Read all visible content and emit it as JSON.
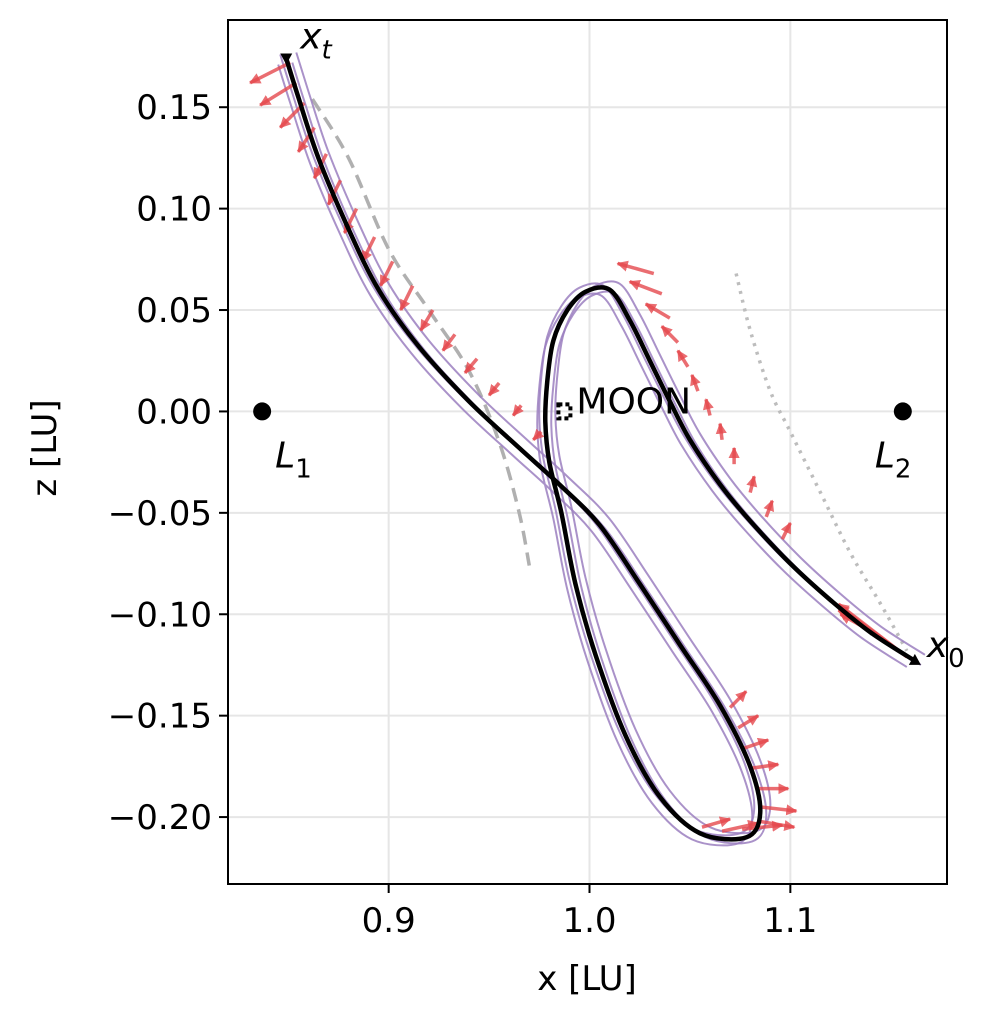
{
  "chart_data": {
    "type": "line",
    "title": "",
    "xlabel": "x [LU]",
    "ylabel": "z [LU]",
    "xlim": [
      0.82,
      1.178
    ],
    "ylim": [
      -0.233,
      0.193
    ],
    "grid": true,
    "xticks": [
      0.9,
      1.0,
      1.1
    ],
    "xtick_labels": [
      "0.9",
      "1.0",
      "1.1"
    ],
    "yticks": [
      0.15,
      0.1,
      0.05,
      0.0,
      -0.05,
      -0.1,
      -0.15,
      -0.2
    ],
    "ytick_labels": [
      "0.15",
      "0.10",
      "0.05",
      "0.00",
      "−0.05",
      "−0.10",
      "−0.15",
      "−0.20"
    ],
    "colors": {
      "trajectory": "#000000",
      "thrust": "#e5484d",
      "ensemble": "#9b7fbf",
      "initial_orbit": "#b0b0b0",
      "target_orbit": "#bdbdbd",
      "grid": "#e6e6e6"
    },
    "points": [
      {
        "name": "L1",
        "label": "L",
        "sub": "1",
        "x": 0.837,
        "z": 0.0
      },
      {
        "name": "L2",
        "label": "L",
        "sub": "2",
        "x": 1.156,
        "z": 0.0
      }
    ],
    "moon": {
      "label": "MOON",
      "x": 0.9875,
      "z": 0.0
    },
    "start": {
      "label": "x",
      "sub": "0",
      "x": 1.162,
      "z": -0.123
    },
    "target": {
      "label": "x",
      "sub": "t",
      "x": 0.849,
      "z": 0.174
    },
    "series": [
      {
        "name": "trajectory",
        "points": [
          [
            1.162,
            -0.123
          ],
          [
            1.14,
            -0.109
          ],
          [
            1.12,
            -0.093
          ],
          [
            1.1,
            -0.075
          ],
          [
            1.08,
            -0.054
          ],
          [
            1.065,
            -0.036
          ],
          [
            1.05,
            -0.014
          ],
          [
            1.04,
            0.005
          ],
          [
            1.03,
            0.025
          ],
          [
            1.02,
            0.045
          ],
          [
            1.01,
            0.06
          ],
          [
            0.998,
            0.059
          ],
          [
            0.989,
            0.05
          ],
          [
            0.982,
            0.035
          ],
          [
            0.979,
            0.015
          ],
          [
            0.978,
            -0.005
          ],
          [
            0.98,
            -0.025
          ],
          [
            0.986,
            -0.05
          ],
          [
            0.993,
            -0.085
          ],
          [
            1.003,
            -0.12
          ],
          [
            1.018,
            -0.16
          ],
          [
            1.035,
            -0.19
          ],
          [
            1.055,
            -0.208
          ],
          [
            1.078,
            -0.21
          ],
          [
            1.085,
            -0.198
          ],
          [
            1.08,
            -0.175
          ],
          [
            1.065,
            -0.145
          ],
          [
            1.045,
            -0.115
          ],
          [
            1.025,
            -0.085
          ],
          [
            1.005,
            -0.056
          ],
          [
            0.985,
            -0.036
          ],
          [
            0.965,
            -0.018
          ],
          [
            0.94,
            0.005
          ],
          [
            0.915,
            0.032
          ],
          [
            0.895,
            0.06
          ],
          [
            0.88,
            0.09
          ],
          [
            0.865,
            0.125
          ],
          [
            0.855,
            0.155
          ],
          [
            0.849,
            0.174
          ]
        ]
      },
      {
        "name": "initial-orbit-dashed",
        "points": [
          [
            0.862,
            0.154
          ],
          [
            0.88,
            0.125
          ],
          [
            0.9,
            0.08
          ],
          [
            0.92,
            0.05
          ],
          [
            0.94,
            0.02
          ],
          [
            0.955,
            -0.015
          ],
          [
            0.965,
            -0.05
          ],
          [
            0.97,
            -0.076
          ]
        ]
      },
      {
        "name": "target-orbit-dotted",
        "points": [
          [
            1.073,
            0.068
          ],
          [
            1.08,
            0.04
          ],
          [
            1.09,
            0.01
          ],
          [
            1.1,
            -0.01
          ],
          [
            1.115,
            -0.04
          ],
          [
            1.13,
            -0.07
          ],
          [
            1.145,
            -0.095
          ],
          [
            1.158,
            -0.118
          ]
        ]
      }
    ],
    "thrust_arrows": [
      {
        "x": 0.851,
        "z": 0.172,
        "dx": -0.02,
        "dz": -0.01
      },
      {
        "x": 0.854,
        "z": 0.162,
        "dx": -0.018,
        "dz": -0.011
      },
      {
        "x": 0.858,
        "z": 0.152,
        "dx": -0.012,
        "dz": -0.012
      },
      {
        "x": 0.863,
        "z": 0.14,
        "dx": -0.008,
        "dz": -0.012
      },
      {
        "x": 0.869,
        "z": 0.127,
        "dx": -0.006,
        "dz": -0.012
      },
      {
        "x": 0.876,
        "z": 0.114,
        "dx": -0.006,
        "dz": -0.012
      },
      {
        "x": 0.884,
        "z": 0.1,
        "dx": -0.006,
        "dz": -0.012
      },
      {
        "x": 0.893,
        "z": 0.086,
        "dx": -0.006,
        "dz": -0.012
      },
      {
        "x": 0.902,
        "z": 0.074,
        "dx": -0.006,
        "dz": -0.012
      },
      {
        "x": 0.912,
        "z": 0.062,
        "dx": -0.006,
        "dz": -0.012
      },
      {
        "x": 0.922,
        "z": 0.05,
        "dx": -0.006,
        "dz": -0.01
      },
      {
        "x": 0.933,
        "z": 0.038,
        "dx": -0.006,
        "dz": -0.008
      },
      {
        "x": 0.944,
        "z": 0.026,
        "dx": -0.006,
        "dz": -0.007
      },
      {
        "x": 0.955,
        "z": 0.014,
        "dx": -0.005,
        "dz": -0.006
      },
      {
        "x": 0.966,
        "z": 0.003,
        "dx": -0.004,
        "dz": -0.005
      },
      {
        "x": 0.976,
        "z": -0.01,
        "dx": -0.004,
        "dz": -0.004
      },
      {
        "x": 1.032,
        "z": 0.068,
        "dx": -0.018,
        "dz": 0.005
      },
      {
        "x": 1.036,
        "z": 0.058,
        "dx": -0.016,
        "dz": 0.006
      },
      {
        "x": 1.04,
        "z": 0.046,
        "dx": -0.012,
        "dz": 0.007
      },
      {
        "x": 1.044,
        "z": 0.034,
        "dx": -0.008,
        "dz": 0.008
      },
      {
        "x": 1.049,
        "z": 0.022,
        "dx": -0.005,
        "dz": 0.008
      },
      {
        "x": 1.054,
        "z": 0.01,
        "dx": -0.003,
        "dz": 0.008
      },
      {
        "x": 1.06,
        "z": -0.002,
        "dx": -0.002,
        "dz": 0.008
      },
      {
        "x": 1.066,
        "z": -0.014,
        "dx": -0.001,
        "dz": 0.008
      },
      {
        "x": 1.072,
        "z": -0.026,
        "dx": 0.0,
        "dz": 0.008
      },
      {
        "x": 1.08,
        "z": -0.04,
        "dx": 0.002,
        "dz": 0.008
      },
      {
        "x": 1.088,
        "z": -0.052,
        "dx": 0.003,
        "dz": 0.008
      },
      {
        "x": 1.096,
        "z": -0.063,
        "dx": 0.004,
        "dz": 0.008
      },
      {
        "x": 1.158,
        "z": -0.121,
        "dx": -0.034,
        "dz": 0.026
      },
      {
        "x": 1.154,
        "z": -0.118,
        "dx": -0.03,
        "dz": 0.022
      },
      {
        "x": 1.148,
        "z": -0.114,
        "dx": -0.024,
        "dz": 0.016
      },
      {
        "x": 1.143,
        "z": -0.11,
        "dx": -0.018,
        "dz": 0.01
      },
      {
        "x": 1.07,
        "z": -0.146,
        "dx": 0.008,
        "dz": 0.008
      },
      {
        "x": 1.074,
        "z": -0.156,
        "dx": 0.01,
        "dz": 0.006
      },
      {
        "x": 1.077,
        "z": -0.166,
        "dx": 0.012,
        "dz": 0.004
      },
      {
        "x": 1.08,
        "z": -0.176,
        "dx": 0.014,
        "dz": 0.002
      },
      {
        "x": 1.083,
        "z": -0.186,
        "dx": 0.016,
        "dz": 0.0
      },
      {
        "x": 1.085,
        "z": -0.195,
        "dx": 0.018,
        "dz": -0.002
      },
      {
        "x": 1.084,
        "z": -0.202,
        "dx": 0.018,
        "dz": -0.003
      },
      {
        "x": 1.076,
        "z": -0.206,
        "dx": 0.02,
        "dz": 0.002
      },
      {
        "x": 1.066,
        "z": -0.207,
        "dx": 0.018,
        "dz": 0.004
      },
      {
        "x": 1.056,
        "z": -0.205,
        "dx": 0.014,
        "dz": 0.004
      }
    ]
  }
}
